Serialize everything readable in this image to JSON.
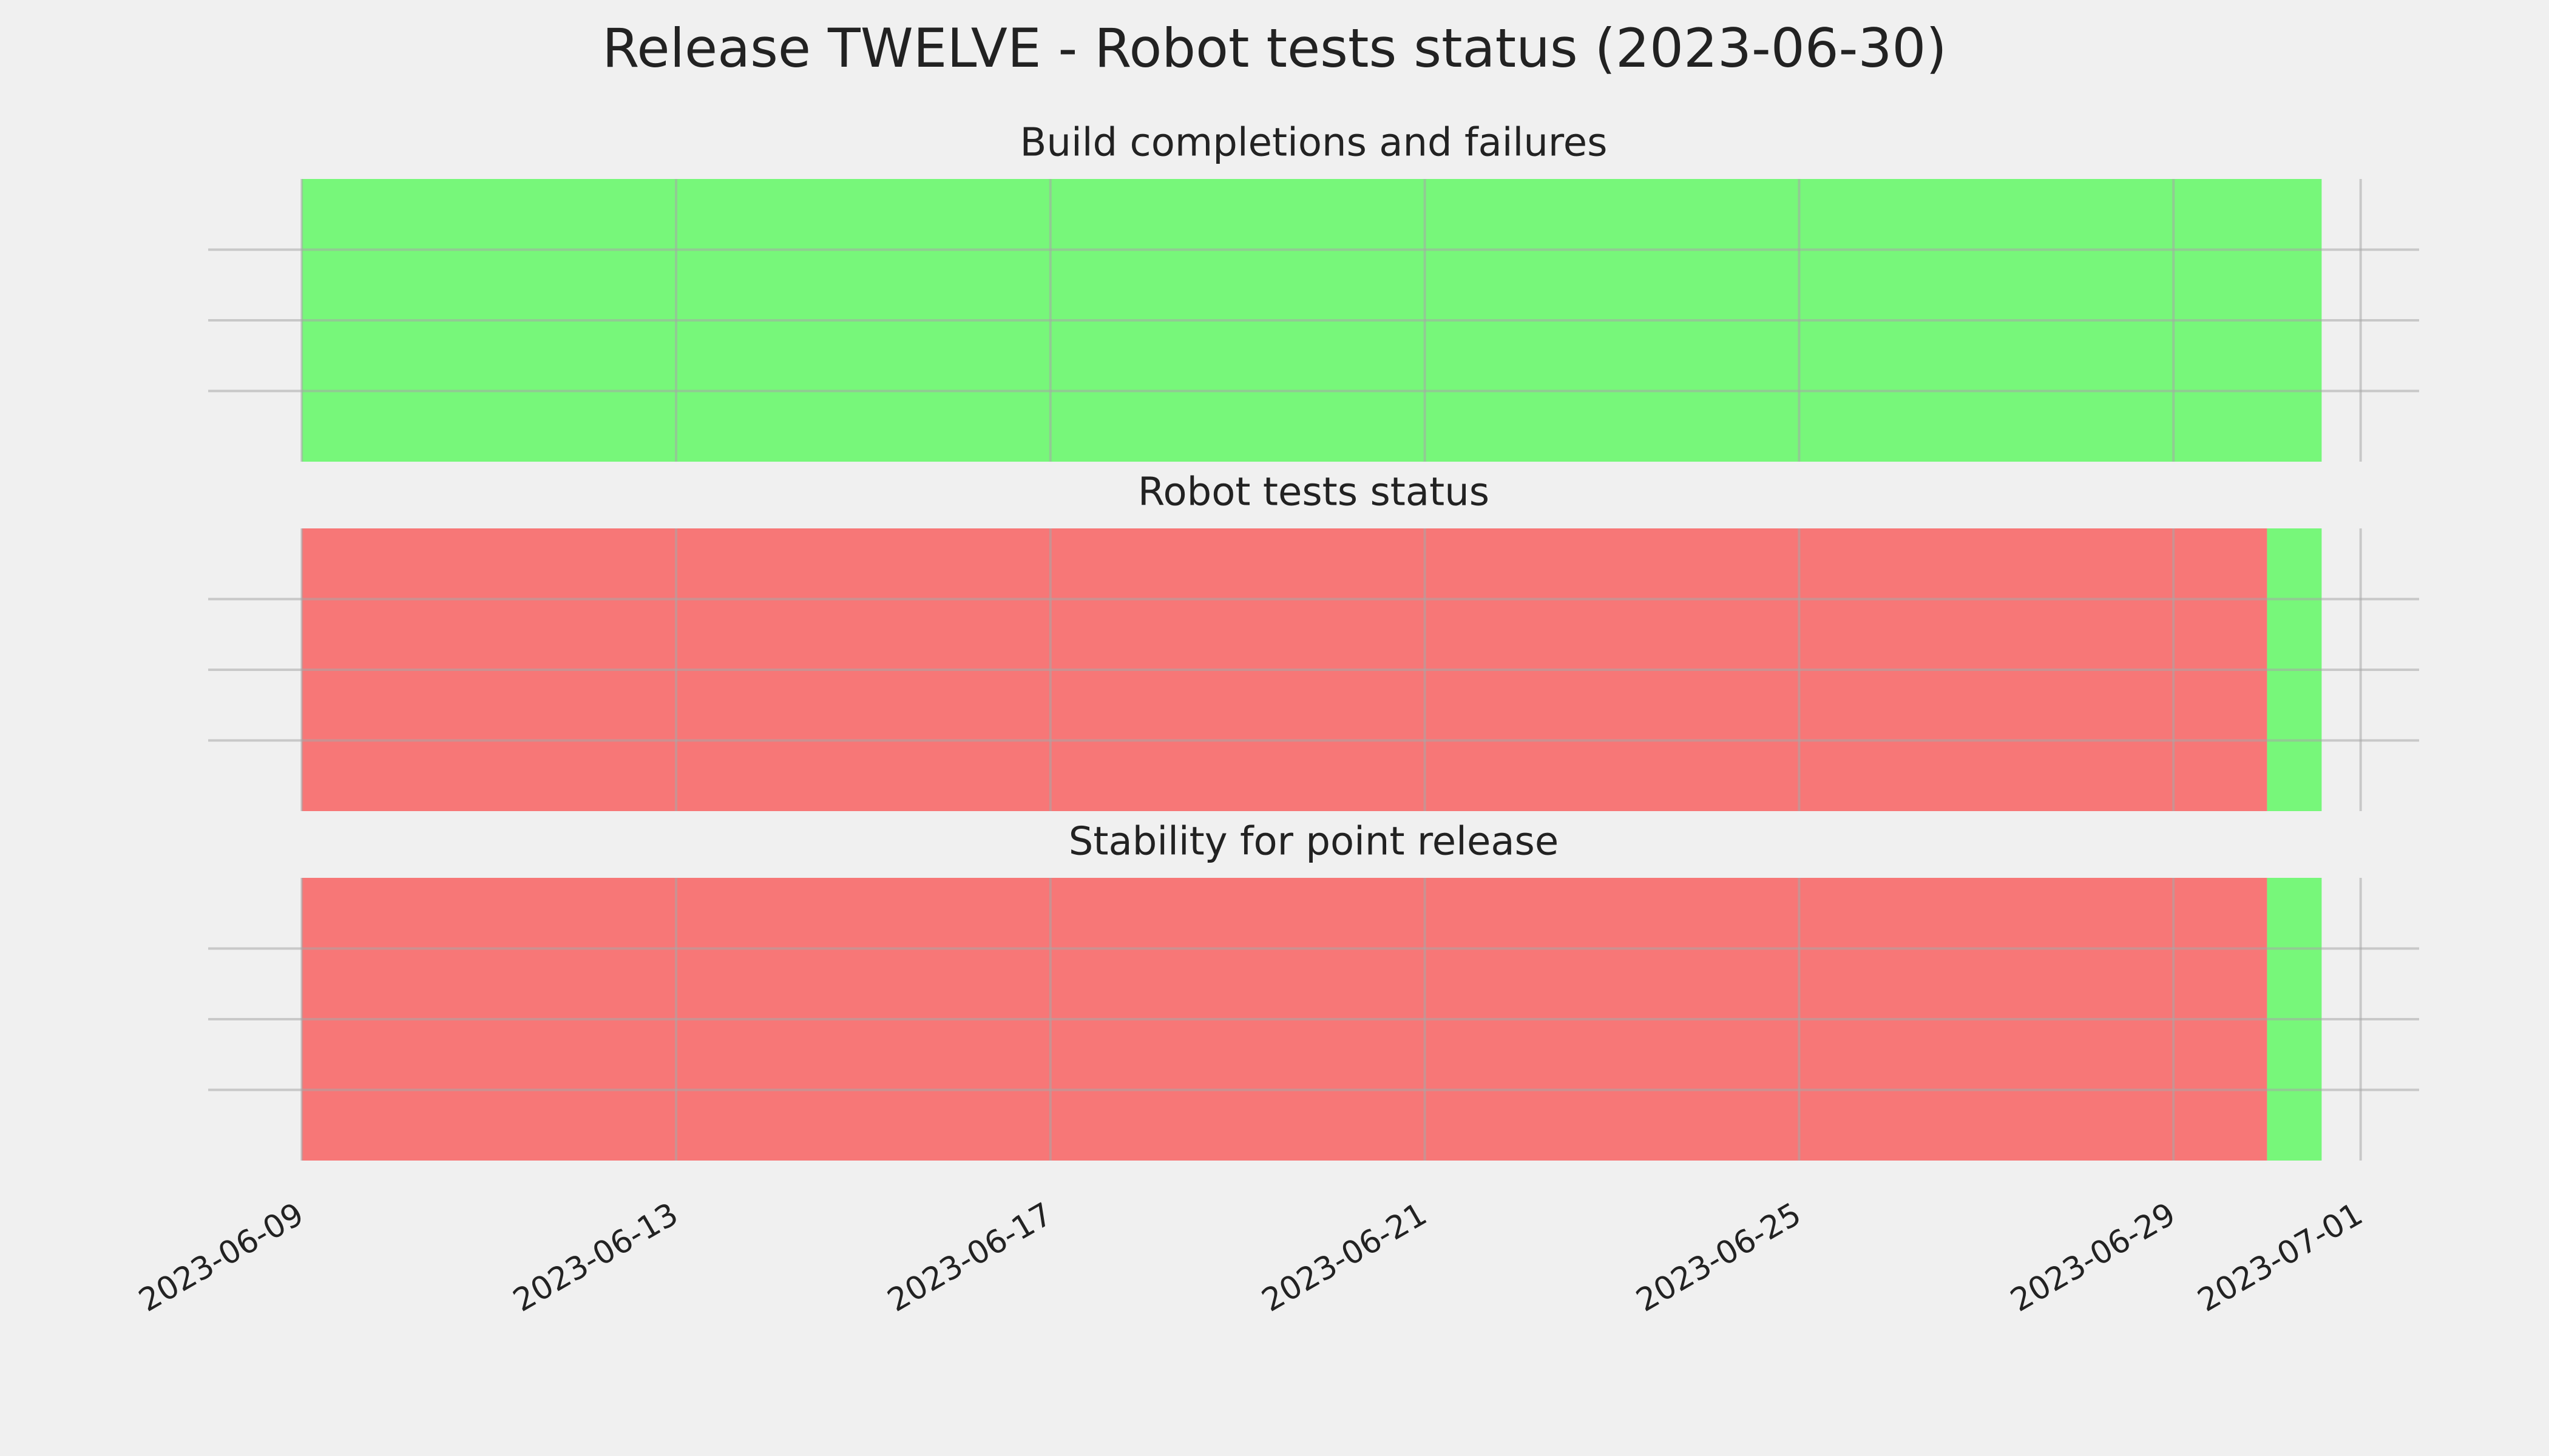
{
  "title": "Release TWELVE - Robot tests status (2023-06-30)",
  "chart_data": [
    {
      "type": "timeline",
      "title": "Build completions and failures",
      "spans": [
        {
          "start": "2023-06-09",
          "end": "2023-06-30T14:00",
          "color": "#77f77a"
        }
      ],
      "xlim": [
        "2023-06-08T00:00",
        "2023-07-01T15:00"
      ],
      "xticks": [
        "2023-06-09",
        "2023-06-13",
        "2023-06-17",
        "2023-06-21",
        "2023-06-25",
        "2023-06-29",
        "2023-07-01"
      ],
      "ylim": [
        0,
        1
      ],
      "yticks": [
        0.25,
        0.5,
        0.75
      ],
      "grid": true
    },
    {
      "type": "timeline",
      "title": "Robot tests status",
      "spans": [
        {
          "start": "2023-06-09",
          "end": "2023-06-30T00:00",
          "color": "#f77777"
        },
        {
          "start": "2023-06-30T00:00",
          "end": "2023-06-30T14:00",
          "color": "#77f77a"
        }
      ],
      "xlim": [
        "2023-06-08T00:00",
        "2023-07-01T15:00"
      ],
      "xticks": [
        "2023-06-09",
        "2023-06-13",
        "2023-06-17",
        "2023-06-21",
        "2023-06-25",
        "2023-06-29",
        "2023-07-01"
      ],
      "ylim": [
        0,
        1
      ],
      "yticks": [
        0.25,
        0.5,
        0.75
      ],
      "grid": true
    },
    {
      "type": "timeline",
      "title": "Stability for point release",
      "spans": [
        {
          "start": "2023-06-09",
          "end": "2023-06-30T00:00",
          "color": "#f77777"
        },
        {
          "start": "2023-06-30T00:00",
          "end": "2023-06-30T14:00",
          "color": "#77f77a"
        }
      ],
      "xlim": [
        "2023-06-08T00:00",
        "2023-07-01T15:00"
      ],
      "xticks": [
        "2023-06-09",
        "2023-06-13",
        "2023-06-17",
        "2023-06-21",
        "2023-06-25",
        "2023-06-29",
        "2023-07-01"
      ],
      "ylim": [
        0,
        1
      ],
      "yticks": [
        0.25,
        0.5,
        0.75
      ],
      "grid": true
    }
  ]
}
